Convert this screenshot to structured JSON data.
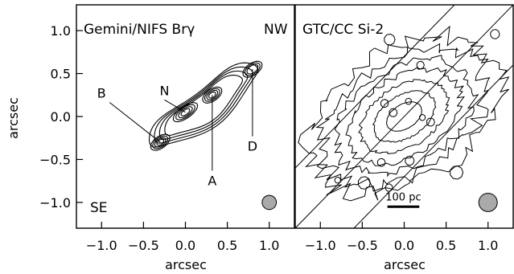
{
  "chart_data": [
    {
      "type": "contour",
      "title": "Gemini/NIFS Brγ",
      "xlabel": "arcsec",
      "ylabel": "arcsec",
      "xlim": [
        -1.3,
        1.3
      ],
      "ylim": [
        -1.3,
        1.3
      ],
      "xticks": [
        "−1.0",
        "−0.5",
        "0.0",
        "0.5",
        "1.0"
      ],
      "yticks": [
        "1.0",
        "0.5",
        "0.0",
        "−0.5",
        "−1.0"
      ],
      "orientation_labels": {
        "top_right": "NW",
        "bottom_left": "SE"
      },
      "beam": {
        "x": 1.0,
        "y": -1.0,
        "diameter": 0.17
      },
      "knots": [
        {
          "label": "B",
          "x": -0.3,
          "y": -0.3,
          "label_x": -1.0,
          "label_y": 0.22
        },
        {
          "label": "N",
          "x": 0.0,
          "y": 0.05,
          "label_x": -0.25,
          "label_y": 0.25
        },
        {
          "label": "A",
          "x": 0.32,
          "y": 0.25,
          "label_x": 0.32,
          "label_y": -0.78
        },
        {
          "label": "D",
          "x": 0.8,
          "y": 0.55,
          "label_x": 0.8,
          "label_y": -0.38
        }
      ],
      "contour_levels": 9
    },
    {
      "type": "contour",
      "title": "GTC/CC Si-2",
      "xlabel": "arcsec",
      "xlim": [
        -1.3,
        1.3
      ],
      "ylim": [
        -1.3,
        1.3
      ],
      "xticks": [
        "−1.0",
        "−0.5",
        "0.0",
        "0.5",
        "1.0"
      ],
      "scale_bar": {
        "label": "100 pc",
        "length_arcsec": 0.38
      },
      "beam": {
        "x": 1.0,
        "y": -1.0,
        "diameter": 0.22
      },
      "slit_lines": 3,
      "contour_levels": 7
    }
  ]
}
